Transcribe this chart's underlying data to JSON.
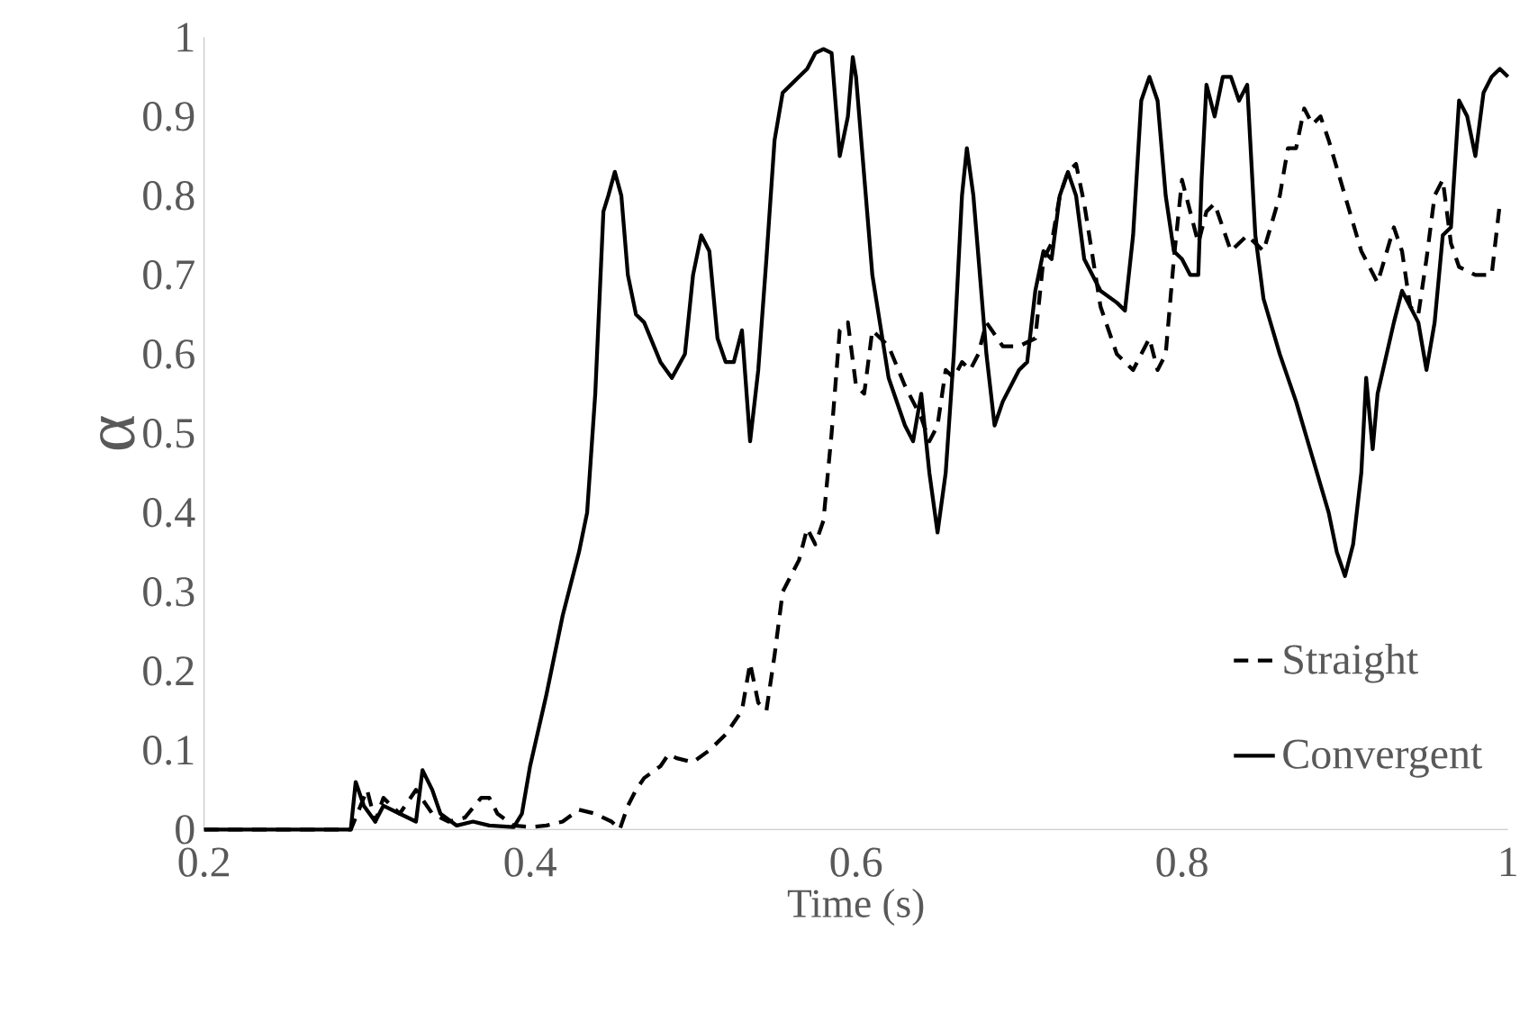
{
  "chart_data": {
    "type": "line",
    "xlabel": "Time (s)",
    "ylabel": "α",
    "xlim": [
      0.2,
      1
    ],
    "ylim": [
      0,
      1
    ],
    "xticks": [
      0.2,
      0.4,
      0.6,
      0.8,
      1
    ],
    "yticks": [
      0,
      0.1,
      0.2,
      0.3,
      0.4,
      0.5,
      0.6,
      0.7,
      0.8,
      0.9,
      1
    ],
    "grid": false,
    "legend": "bottom right",
    "marker": "none",
    "series": [
      {
        "name": "Straight",
        "color": "#000000",
        "line_style": "dashed",
        "x": [
          0.2,
          0.29,
          0.3,
          0.305,
          0.31,
          0.32,
          0.33,
          0.34,
          0.35,
          0.36,
          0.37,
          0.375,
          0.38,
          0.39,
          0.4,
          0.41,
          0.42,
          0.43,
          0.44,
          0.45,
          0.455,
          0.46,
          0.465,
          0.47,
          0.48,
          0.485,
          0.49,
          0.5,
          0.51,
          0.52,
          0.53,
          0.535,
          0.54,
          0.545,
          0.55,
          0.555,
          0.565,
          0.57,
          0.575,
          0.58,
          0.585,
          0.59,
          0.595,
          0.6,
          0.605,
          0.61,
          0.62,
          0.63,
          0.64,
          0.645,
          0.65,
          0.655,
          0.66,
          0.665,
          0.67,
          0.675,
          0.68,
          0.69,
          0.7,
          0.71,
          0.715,
          0.72,
          0.725,
          0.73,
          0.735,
          0.74,
          0.75,
          0.76,
          0.77,
          0.775,
          0.78,
          0.785,
          0.79,
          0.795,
          0.8,
          0.805,
          0.81,
          0.815,
          0.82,
          0.825,
          0.83,
          0.84,
          0.845,
          0.85,
          0.86,
          0.865,
          0.87,
          0.875,
          0.88,
          0.885,
          0.89,
          0.9,
          0.91,
          0.92,
          0.93,
          0.935,
          0.94,
          0.945,
          0.95,
          0.955,
          0.96,
          0.965,
          0.97,
          0.98,
          0.99,
          0.995
        ],
        "values": [
          0,
          0,
          0.05,
          0.01,
          0.04,
          0.02,
          0.05,
          0.02,
          0.01,
          0.015,
          0.04,
          0.04,
          0.02,
          0.005,
          0.003,
          0.005,
          0.01,
          0.025,
          0.02,
          0.01,
          0,
          0.03,
          0.05,
          0.065,
          0.08,
          0.095,
          0.09,
          0.085,
          0.1,
          0.12,
          0.15,
          0.21,
          0.16,
          0.15,
          0.22,
          0.3,
          0.34,
          0.38,
          0.36,
          0.39,
          0.5,
          0.63,
          0.64,
          0.56,
          0.55,
          0.63,
          0.61,
          0.56,
          0.52,
          0.49,
          0.51,
          0.58,
          0.57,
          0.59,
          0.58,
          0.6,
          0.64,
          0.61,
          0.61,
          0.62,
          0.72,
          0.74,
          0.8,
          0.83,
          0.84,
          0.79,
          0.66,
          0.6,
          0.58,
          0.6,
          0.62,
          0.58,
          0.6,
          0.72,
          0.82,
          0.78,
          0.74,
          0.78,
          0.79,
          0.76,
          0.73,
          0.75,
          0.74,
          0.73,
          0.8,
          0.86,
          0.86,
          0.91,
          0.89,
          0.9,
          0.87,
          0.8,
          0.73,
          0.69,
          0.76,
          0.73,
          0.66,
          0.65,
          0.72,
          0.8,
          0.82,
          0.74,
          0.71,
          0.7,
          0.7,
          0.79
        ]
      },
      {
        "name": "Convergent",
        "color": "#000000",
        "line_style": "solid",
        "x": [
          0.2,
          0.29,
          0.293,
          0.298,
          0.305,
          0.31,
          0.32,
          0.33,
          0.334,
          0.34,
          0.345,
          0.355,
          0.365,
          0.375,
          0.39,
          0.395,
          0.4,
          0.41,
          0.42,
          0.43,
          0.435,
          0.44,
          0.445,
          0.448,
          0.452,
          0.456,
          0.46,
          0.465,
          0.47,
          0.48,
          0.487,
          0.495,
          0.5,
          0.505,
          0.51,
          0.515,
          0.52,
          0.525,
          0.53,
          0.535,
          0.54,
          0.545,
          0.55,
          0.555,
          0.56,
          0.565,
          0.57,
          0.575,
          0.58,
          0.585,
          0.59,
          0.595,
          0.598,
          0.6,
          0.61,
          0.62,
          0.63,
          0.635,
          0.64,
          0.645,
          0.65,
          0.655,
          0.66,
          0.665,
          0.668,
          0.672,
          0.68,
          0.685,
          0.69,
          0.7,
          0.705,
          0.71,
          0.715,
          0.72,
          0.725,
          0.73,
          0.735,
          0.74,
          0.75,
          0.76,
          0.765,
          0.77,
          0.775,
          0.78,
          0.785,
          0.79,
          0.795,
          0.8,
          0.805,
          0.81,
          0.812,
          0.815,
          0.82,
          0.825,
          0.83,
          0.835,
          0.84,
          0.845,
          0.85,
          0.86,
          0.87,
          0.88,
          0.89,
          0.895,
          0.9,
          0.905,
          0.91,
          0.913,
          0.917,
          0.92,
          0.93,
          0.935,
          0.94,
          0.945,
          0.95,
          0.955,
          0.96,
          0.965,
          0.97,
          0.975,
          0.98,
          0.985,
          0.99,
          0.995,
          1
        ],
        "values": [
          0,
          0,
          0.06,
          0.03,
          0.01,
          0.03,
          0.02,
          0.01,
          0.075,
          0.05,
          0.02,
          0.005,
          0.01,
          0.005,
          0.003,
          0.02,
          0.08,
          0.17,
          0.27,
          0.35,
          0.4,
          0.55,
          0.78,
          0.8,
          0.83,
          0.8,
          0.7,
          0.65,
          0.64,
          0.59,
          0.57,
          0.6,
          0.7,
          0.75,
          0.73,
          0.62,
          0.59,
          0.59,
          0.63,
          0.49,
          0.58,
          0.72,
          0.87,
          0.93,
          0.94,
          0.95,
          0.96,
          0.98,
          0.985,
          0.98,
          0.85,
          0.9,
          0.975,
          0.95,
          0.7,
          0.57,
          0.51,
          0.49,
          0.55,
          0.45,
          0.375,
          0.45,
          0.6,
          0.8,
          0.86,
          0.8,
          0.6,
          0.51,
          0.54,
          0.58,
          0.59,
          0.68,
          0.73,
          0.72,
          0.8,
          0.83,
          0.8,
          0.72,
          0.68,
          0.665,
          0.655,
          0.75,
          0.92,
          0.95,
          0.92,
          0.8,
          0.73,
          0.72,
          0.7,
          0.7,
          0.82,
          0.94,
          0.9,
          0.95,
          0.95,
          0.92,
          0.94,
          0.75,
          0.67,
          0.6,
          0.54,
          0.47,
          0.4,
          0.35,
          0.32,
          0.36,
          0.45,
          0.57,
          0.48,
          0.55,
          0.64,
          0.68,
          0.66,
          0.64,
          0.58,
          0.64,
          0.75,
          0.76,
          0.92,
          0.9,
          0.85,
          0.93,
          0.95,
          0.96,
          0.95
        ]
      }
    ]
  }
}
